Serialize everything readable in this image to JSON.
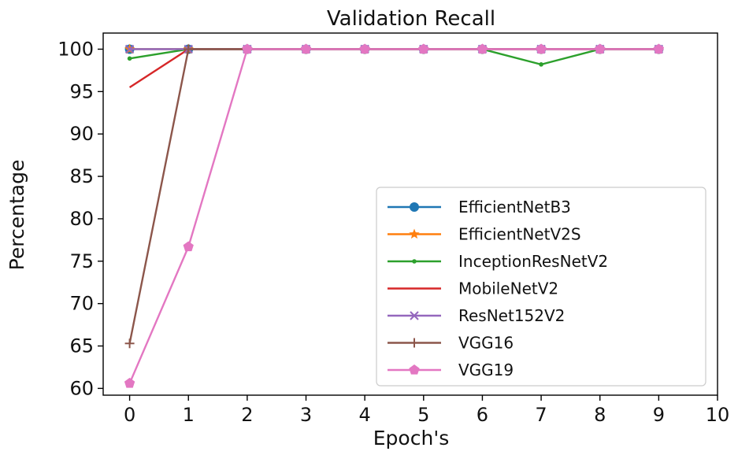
{
  "chart_data": {
    "type": "line",
    "title": "Validation Recall",
    "xlabel": "Epoch's",
    "ylabel": "Percentage",
    "xlim": [
      -0.45,
      10
    ],
    "ylim": [
      59.2,
      101.9
    ],
    "xticks": [
      0,
      1,
      2,
      3,
      4,
      5,
      6,
      7,
      8,
      9,
      10
    ],
    "yticks": [
      60,
      65,
      70,
      75,
      80,
      85,
      90,
      95,
      100
    ],
    "grid": false,
    "legend_position": "lower-right",
    "x": [
      0,
      1,
      2,
      3,
      4,
      5,
      6,
      7,
      8,
      9
    ],
    "series": [
      {
        "name": "EfficientNetB3",
        "color": "#1f77b4",
        "marker": "circle",
        "values": [
          100,
          100,
          100,
          100,
          100,
          100,
          100,
          100,
          100,
          100
        ]
      },
      {
        "name": "EfficientNetV2S",
        "color": "#ff7f0e",
        "marker": "star",
        "values": [
          100,
          100,
          100,
          100,
          100,
          100,
          100,
          100,
          100,
          100
        ]
      },
      {
        "name": "InceptionResNetV2",
        "color": "#2ca02c",
        "marker": "point",
        "values": [
          98.9,
          100,
          100,
          100,
          100,
          100,
          100,
          98.2,
          100,
          100
        ]
      },
      {
        "name": "MobileNetV2",
        "color": "#d62728",
        "marker": "none",
        "values": [
          95.5,
          100,
          100,
          100,
          100,
          100,
          100,
          100,
          100,
          100
        ]
      },
      {
        "name": "ResNet152V2",
        "color": "#9467bd",
        "marker": "x",
        "values": [
          100,
          100,
          100,
          100,
          100,
          100,
          100,
          100,
          100,
          100
        ]
      },
      {
        "name": "VGG16",
        "color": "#8c564b",
        "marker": "plus",
        "values": [
          65.3,
          100,
          100,
          100,
          100,
          100,
          100,
          100,
          100,
          100
        ]
      },
      {
        "name": "VGG19",
        "color": "#e377c2",
        "marker": "pentagon",
        "values": [
          60.6,
          76.7,
          100,
          100,
          100,
          100,
          100,
          100,
          100,
          100
        ]
      }
    ]
  }
}
